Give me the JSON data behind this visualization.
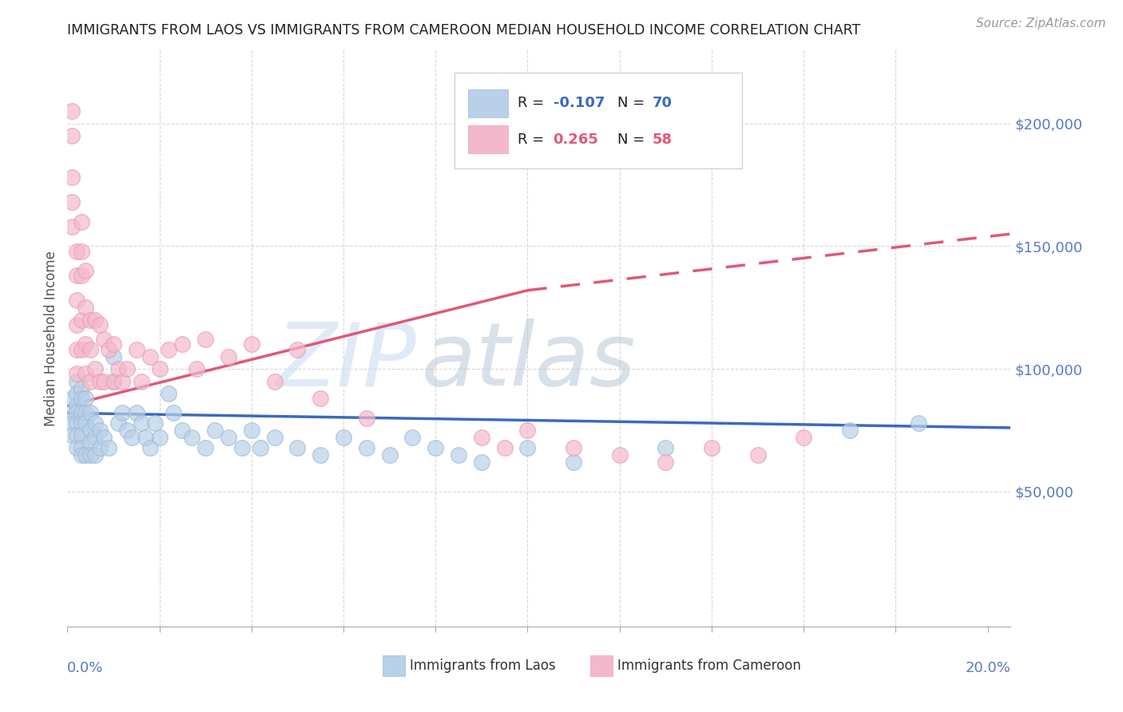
{
  "title": "IMMIGRANTS FROM LAOS VS IMMIGRANTS FROM CAMEROON MEDIAN HOUSEHOLD INCOME CORRELATION CHART",
  "source": "Source: ZipAtlas.com",
  "ylabel": "Median Household Income",
  "xlim": [
    0.0,
    0.205
  ],
  "ylim": [
    -5000,
    230000
  ],
  "yticks": [
    0,
    50000,
    100000,
    150000,
    200000
  ],
  "ytick_labels": [
    "",
    "$50,000",
    "$100,000",
    "$150,000",
    "$200,000"
  ],
  "watermark_zip": "ZIP",
  "watermark_atlas": "atlas",
  "blue_fill": "#b8d0e8",
  "blue_edge": "#a0bcd8",
  "pink_fill": "#f4b8cc",
  "pink_edge": "#e8a0b8",
  "blue_line": "#3a6abf",
  "pink_line": "#e05878",
  "axis_color": "#5878c8",
  "grid_color": "#d8d8d8",
  "title_color": "#222222",
  "source_color": "#999999",
  "ylabel_color": "#555555",
  "legend_r_color": "#222222",
  "legend_blue_val_color": "#3a6abf",
  "legend_pink_val_color": "#e05878",
  "laos_x": [
    0.001,
    0.001,
    0.001,
    0.001,
    0.002,
    0.002,
    0.002,
    0.002,
    0.002,
    0.002,
    0.002,
    0.003,
    0.003,
    0.003,
    0.003,
    0.003,
    0.003,
    0.003,
    0.004,
    0.004,
    0.004,
    0.004,
    0.005,
    0.005,
    0.005,
    0.005,
    0.006,
    0.006,
    0.006,
    0.007,
    0.007,
    0.008,
    0.009,
    0.01,
    0.01,
    0.011,
    0.012,
    0.013,
    0.014,
    0.015,
    0.016,
    0.017,
    0.018,
    0.019,
    0.02,
    0.022,
    0.023,
    0.025,
    0.027,
    0.03,
    0.032,
    0.035,
    0.038,
    0.04,
    0.042,
    0.045,
    0.05,
    0.055,
    0.06,
    0.065,
    0.07,
    0.075,
    0.08,
    0.085,
    0.09,
    0.1,
    0.11,
    0.13,
    0.17,
    0.185
  ],
  "laos_y": [
    88000,
    82000,
    78000,
    73000,
    95000,
    90000,
    85000,
    82000,
    78000,
    73000,
    68000,
    92000,
    88000,
    82000,
    78000,
    73000,
    68000,
    65000,
    88000,
    82000,
    78000,
    65000,
    82000,
    75000,
    70000,
    65000,
    78000,
    72000,
    65000,
    75000,
    68000,
    72000,
    68000,
    105000,
    95000,
    78000,
    82000,
    75000,
    72000,
    82000,
    78000,
    72000,
    68000,
    78000,
    72000,
    90000,
    82000,
    75000,
    72000,
    68000,
    75000,
    72000,
    68000,
    75000,
    68000,
    72000,
    68000,
    65000,
    72000,
    68000,
    65000,
    72000,
    68000,
    65000,
    62000,
    68000,
    62000,
    68000,
    75000,
    78000
  ],
  "cameroon_x": [
    0.001,
    0.001,
    0.001,
    0.001,
    0.001,
    0.002,
    0.002,
    0.002,
    0.002,
    0.002,
    0.002,
    0.003,
    0.003,
    0.003,
    0.003,
    0.003,
    0.004,
    0.004,
    0.004,
    0.004,
    0.005,
    0.005,
    0.005,
    0.006,
    0.006,
    0.007,
    0.007,
    0.008,
    0.008,
    0.009,
    0.01,
    0.01,
    0.011,
    0.012,
    0.013,
    0.015,
    0.016,
    0.018,
    0.02,
    0.022,
    0.025,
    0.028,
    0.03,
    0.035,
    0.04,
    0.045,
    0.05,
    0.055,
    0.065,
    0.09,
    0.095,
    0.1,
    0.11,
    0.12,
    0.13,
    0.14,
    0.15,
    0.16
  ],
  "cameroon_y": [
    205000,
    195000,
    178000,
    168000,
    158000,
    148000,
    138000,
    128000,
    118000,
    108000,
    98000,
    160000,
    148000,
    138000,
    120000,
    108000,
    140000,
    125000,
    110000,
    98000,
    120000,
    108000,
    95000,
    120000,
    100000,
    118000,
    95000,
    112000,
    95000,
    108000,
    110000,
    95000,
    100000,
    95000,
    100000,
    108000,
    95000,
    105000,
    100000,
    108000,
    110000,
    100000,
    112000,
    105000,
    110000,
    95000,
    108000,
    88000,
    80000,
    72000,
    68000,
    75000,
    68000,
    65000,
    62000,
    68000,
    65000,
    72000
  ]
}
